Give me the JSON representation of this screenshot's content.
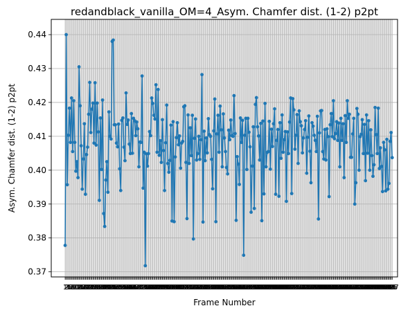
{
  "chart_data": {
    "type": "line",
    "title": "redandblack_vanilla_OM=4_Asym. Chamfer dist. (1-2) p2pt",
    "xlabel": "Frame Number",
    "ylabel": "Asym. Chamfer dist. (1-2) p2pt",
    "ylim": [
      0.3685,
      0.4445
    ],
    "xlim": [
      -12,
      312
    ],
    "yticks": [
      0.37,
      0.38,
      0.39,
      0.4,
      0.41,
      0.42,
      0.43,
      0.44
    ],
    "ytick_labels": [
      "0.37",
      "0.38",
      "0.39",
      "0.40",
      "0.41",
      "0.42",
      "0.43",
      "0.44"
    ],
    "xtick_labels_note": "unreadable overlapping integer frame labels (one per frame)",
    "grid": true,
    "colors": {
      "line": "#1f77b4",
      "grid": "#b0b0b0",
      "axes": "#000000"
    },
    "series": [
      {
        "marker": "circle",
        "x_start": 1,
        "values": [
          0.3778,
          0.44,
          0.3957,
          0.4103,
          0.4183,
          0.4082,
          0.4213,
          0.4055,
          0.4205,
          0.4082,
          0.3997,
          0.4025,
          0.3978,
          0.4305,
          0.419,
          0.4072,
          0.3944,
          0.4033,
          0.4137,
          0.3929,
          0.4046,
          0.4068,
          0.4165,
          0.4259,
          0.4111,
          0.418,
          0.4198,
          0.408,
          0.4258,
          0.4074,
          0.4198,
          0.4113,
          0.3911,
          0.4154,
          0.4002,
          0.4207,
          0.3872,
          0.3834,
          0.3971,
          0.4025,
          0.3935,
          0.4172,
          0.41,
          0.4092,
          0.438,
          0.4384,
          0.4134,
          0.4134,
          0.408,
          0.4069,
          0.4136,
          0.4004,
          0.394,
          0.4147,
          0.4154,
          0.4068,
          0.4028,
          0.4228,
          0.4135,
          0.4148,
          0.4077,
          0.4049,
          0.4167,
          0.405,
          0.4153,
          0.4146,
          0.4102,
          0.4142,
          0.4122,
          0.401,
          0.4083,
          0.4082,
          0.4278,
          0.3947,
          0.4053,
          0.3718,
          0.4048,
          0.4012,
          0.4049,
          0.4114,
          0.4102,
          0.4213,
          0.4197,
          0.4162,
          0.4151,
          0.4252,
          0.4053,
          0.4238,
          0.4044,
          0.4087,
          0.4023,
          0.4149,
          0.4058,
          0.394,
          0.4081,
          0.4192,
          0.402,
          0.3994,
          0.4029,
          0.4133,
          0.385,
          0.4143,
          0.3848,
          0.4039,
          0.4096,
          0.414,
          0.4075,
          0.4101,
          0.4006,
          0.408,
          0.4085,
          0.4187,
          0.419,
          0.4023,
          0.3857,
          0.4163,
          0.402,
          0.4125,
          0.4043,
          0.4162,
          0.3797,
          0.4094,
          0.4151,
          0.403,
          0.4049,
          0.41,
          0.4032,
          0.409,
          0.4282,
          0.3847,
          0.4115,
          0.4028,
          0.4095,
          0.4051,
          0.4152,
          0.4105,
          0.41,
          0.4032,
          0.3945,
          0.4116,
          0.421,
          0.3848,
          0.4107,
          0.4162,
          0.4053,
          0.4189,
          0.4119,
          0.401,
          0.4166,
          0.4095,
          0.4055,
          0.4008,
          0.3989,
          0.4118,
          0.409,
          0.4148,
          0.4102,
          0.41,
          0.422,
          0.4108,
          0.3852,
          0.404,
          0.4018,
          0.3958,
          0.4154,
          0.4082,
          0.4147,
          0.3749,
          0.4103,
          0.4153,
          0.4002,
          0.4153,
          0.4112,
          0.4069,
          0.3876,
          0.4012,
          0.4128,
          0.3887,
          0.4194,
          0.4214,
          0.4128,
          0.4101,
          0.403,
          0.4138,
          0.3851,
          0.4145,
          0.393,
          0.4197,
          0.401,
          0.4052,
          0.4055,
          0.4144,
          0.4003,
          0.4121,
          0.407,
          0.4137,
          0.4181,
          0.3929,
          0.4088,
          0.412,
          0.3923,
          0.414,
          0.4035,
          0.4163,
          0.4053,
          0.409,
          0.4114,
          0.3908,
          0.4113,
          0.4049,
          0.4142,
          0.4213,
          0.3931,
          0.4211,
          0.4178,
          0.4062,
          0.4103,
          0.4164,
          0.402,
          0.4175,
          0.4143,
          0.4131,
          0.4051,
          0.4095,
          0.412,
          0.4146,
          0.3991,
          0.4097,
          0.416,
          0.4056,
          0.3963,
          0.414,
          0.413,
          0.4103,
          0.4088,
          0.4055,
          0.4159,
          0.3856,
          0.411,
          0.4175,
          0.4176,
          0.4055,
          0.4033,
          0.412,
          0.403,
          0.4122,
          0.4099,
          0.3922,
          0.4134,
          0.4167,
          0.4099,
          0.4205,
          0.4093,
          0.4108,
          0.4143,
          0.4088,
          0.4139,
          0.401,
          0.4153,
          0.4088,
          0.4137,
          0.3978,
          0.4161,
          0.4082,
          0.4205,
          0.4153,
          0.4165,
          0.4038,
          0.4038,
          0.4107,
          0.4153,
          0.39,
          0.3963,
          0.4182,
          0.4165,
          0.4,
          0.4099,
          0.4106,
          0.4149,
          0.4049,
          0.4135,
          0.3969,
          0.4163,
          0.405,
          0.4146,
          0.4,
          0.4119,
          0.4043,
          0.3982,
          0.4016,
          0.4185,
          0.4105,
          0.4049,
          0.4183,
          0.4005,
          0.4066,
          0.4011,
          0.3937,
          0.4082,
          0.406,
          0.3939,
          0.4091,
          0.3944,
          0.3961,
          0.4085,
          0.4111,
          0.4037
        ]
      }
    ]
  }
}
